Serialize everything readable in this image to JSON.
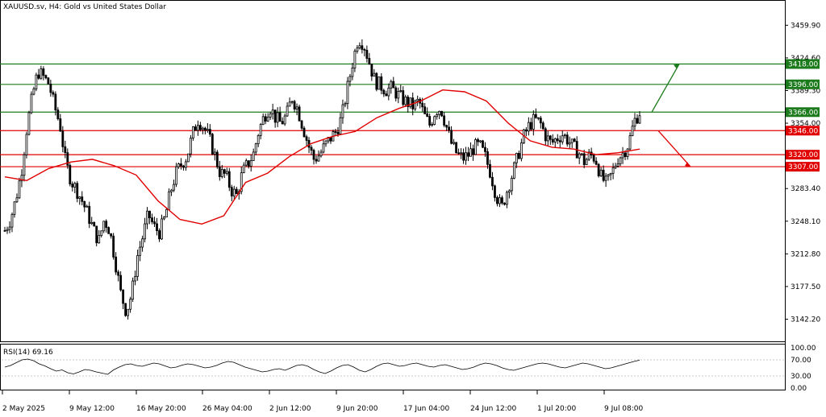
{
  "chart_title": "XAUUSD.sv, H4:  Gold vs United States Dollar",
  "rsi_title": "RSI(14) 69.16",
  "colors": {
    "support": "#e00000",
    "resistance": "#1b7a1b",
    "moving_average": "#e00000",
    "candles": "#000000"
  },
  "chart_data": [
    {
      "type": "candlestick",
      "title": "XAUUSD.sv, H4:  Gold vs United States Dollar",
      "ylim": [
        3120,
        3475
      ],
      "y_ticks": [
        "3459.90",
        "3424.60",
        "3389.30",
        "3354.00",
        "3283.40",
        "3248.10",
        "3212.80",
        "3177.50",
        "3142.20"
      ],
      "x_ticks": [
        "2 May 2025",
        "9 May 12:00",
        "16 May 20:00",
        "26 May 04:00",
        "2 Jun 12:00",
        "9 Jun 20:00",
        "17 Jun 04:00",
        "24 Jun 12:00",
        "1 Jul 20:00",
        "9 Jul 08:00"
      ],
      "level_labels": [
        {
          "text": "3418.00",
          "value": 3418,
          "kind": "resistance"
        },
        {
          "text": "3396.00",
          "value": 3396,
          "kind": "resistance"
        },
        {
          "text": "3366.00",
          "value": 3366,
          "kind": "resistance"
        },
        {
          "text": "3346.00",
          "value": 3346,
          "kind": "support"
        },
        {
          "text": "3320.00",
          "value": 3320,
          "kind": "support"
        },
        {
          "text": "3307.00",
          "value": 3307,
          "kind": "support"
        }
      ],
      "close_path": [
        3238,
        3250,
        3272,
        3302,
        3350,
        3384,
        3410,
        3404,
        3396,
        3372,
        3352,
        3312,
        3292,
        3282,
        3270,
        3256,
        3240,
        3226,
        3250,
        3238,
        3205,
        3170,
        3150,
        3170,
        3210,
        3232,
        3256,
        3242,
        3236,
        3252,
        3280,
        3300,
        3310,
        3318,
        3342,
        3358,
        3350,
        3338,
        3320,
        3300,
        3298,
        3282,
        3276,
        3300,
        3310,
        3320,
        3346,
        3362,
        3372,
        3360,
        3354,
        3362,
        3382,
        3370,
        3350,
        3330,
        3315,
        3320,
        3330,
        3338,
        3345,
        3360,
        3390,
        3420,
        3446,
        3440,
        3420,
        3400,
        3395,
        3390,
        3392,
        3386,
        3380,
        3376,
        3372,
        3378,
        3362,
        3352,
        3368,
        3370,
        3350,
        3330,
        3320,
        3316,
        3320,
        3328,
        3330,
        3318,
        3300,
        3276,
        3262,
        3282,
        3300,
        3320,
        3340,
        3352,
        3358,
        3354,
        3340,
        3332,
        3338,
        3342,
        3336,
        3328,
        3322,
        3312,
        3320,
        3316,
        3296,
        3288,
        3300,
        3316,
        3322,
        3332,
        3356,
        3366
      ],
      "moving_average": [
        3296,
        3292,
        3305,
        3312,
        3315,
        3308,
        3298,
        3270,
        3250,
        3245,
        3254,
        3290,
        3300,
        3318,
        3332,
        3340,
        3345,
        3360,
        3370,
        3378,
        3390,
        3388,
        3378,
        3354,
        3335,
        3328,
        3326,
        3320,
        3322,
        3326
      ],
      "rsi": {
        "title": "RSI(14) 69.16",
        "current": 69.16,
        "ylim": [
          0,
          100
        ],
        "levels": [
          30,
          70
        ],
        "y_ticks": [
          "100.00",
          "70.00",
          "30.00",
          "0.00"
        ],
        "values": [
          52,
          56,
          63,
          70,
          72,
          68,
          60,
          55,
          48,
          42,
          45,
          38,
          35,
          40,
          46,
          44,
          40,
          37,
          34,
          45,
          52,
          58,
          60,
          56,
          54,
          58,
          62,
          60,
          55,
          50,
          52,
          57,
          60,
          58,
          54,
          50,
          52,
          56,
          62,
          66,
          64,
          58,
          52,
          48,
          44,
          40,
          42,
          46,
          48,
          44,
          50,
          56,
          58,
          54,
          46,
          40,
          36,
          42,
          50,
          56,
          58,
          52,
          44,
          40,
          46,
          54,
          60,
          62,
          58,
          54,
          56,
          60,
          62,
          58,
          54,
          52,
          56,
          58,
          54,
          50,
          46,
          48,
          52,
          58,
          62,
          60,
          56,
          50,
          46,
          44,
          48,
          52,
          56,
          60,
          62,
          60,
          56,
          52,
          50,
          54,
          58,
          62,
          60,
          56,
          52,
          48,
          50,
          54,
          58,
          62,
          66,
          69.16
        ]
      }
    }
  ]
}
